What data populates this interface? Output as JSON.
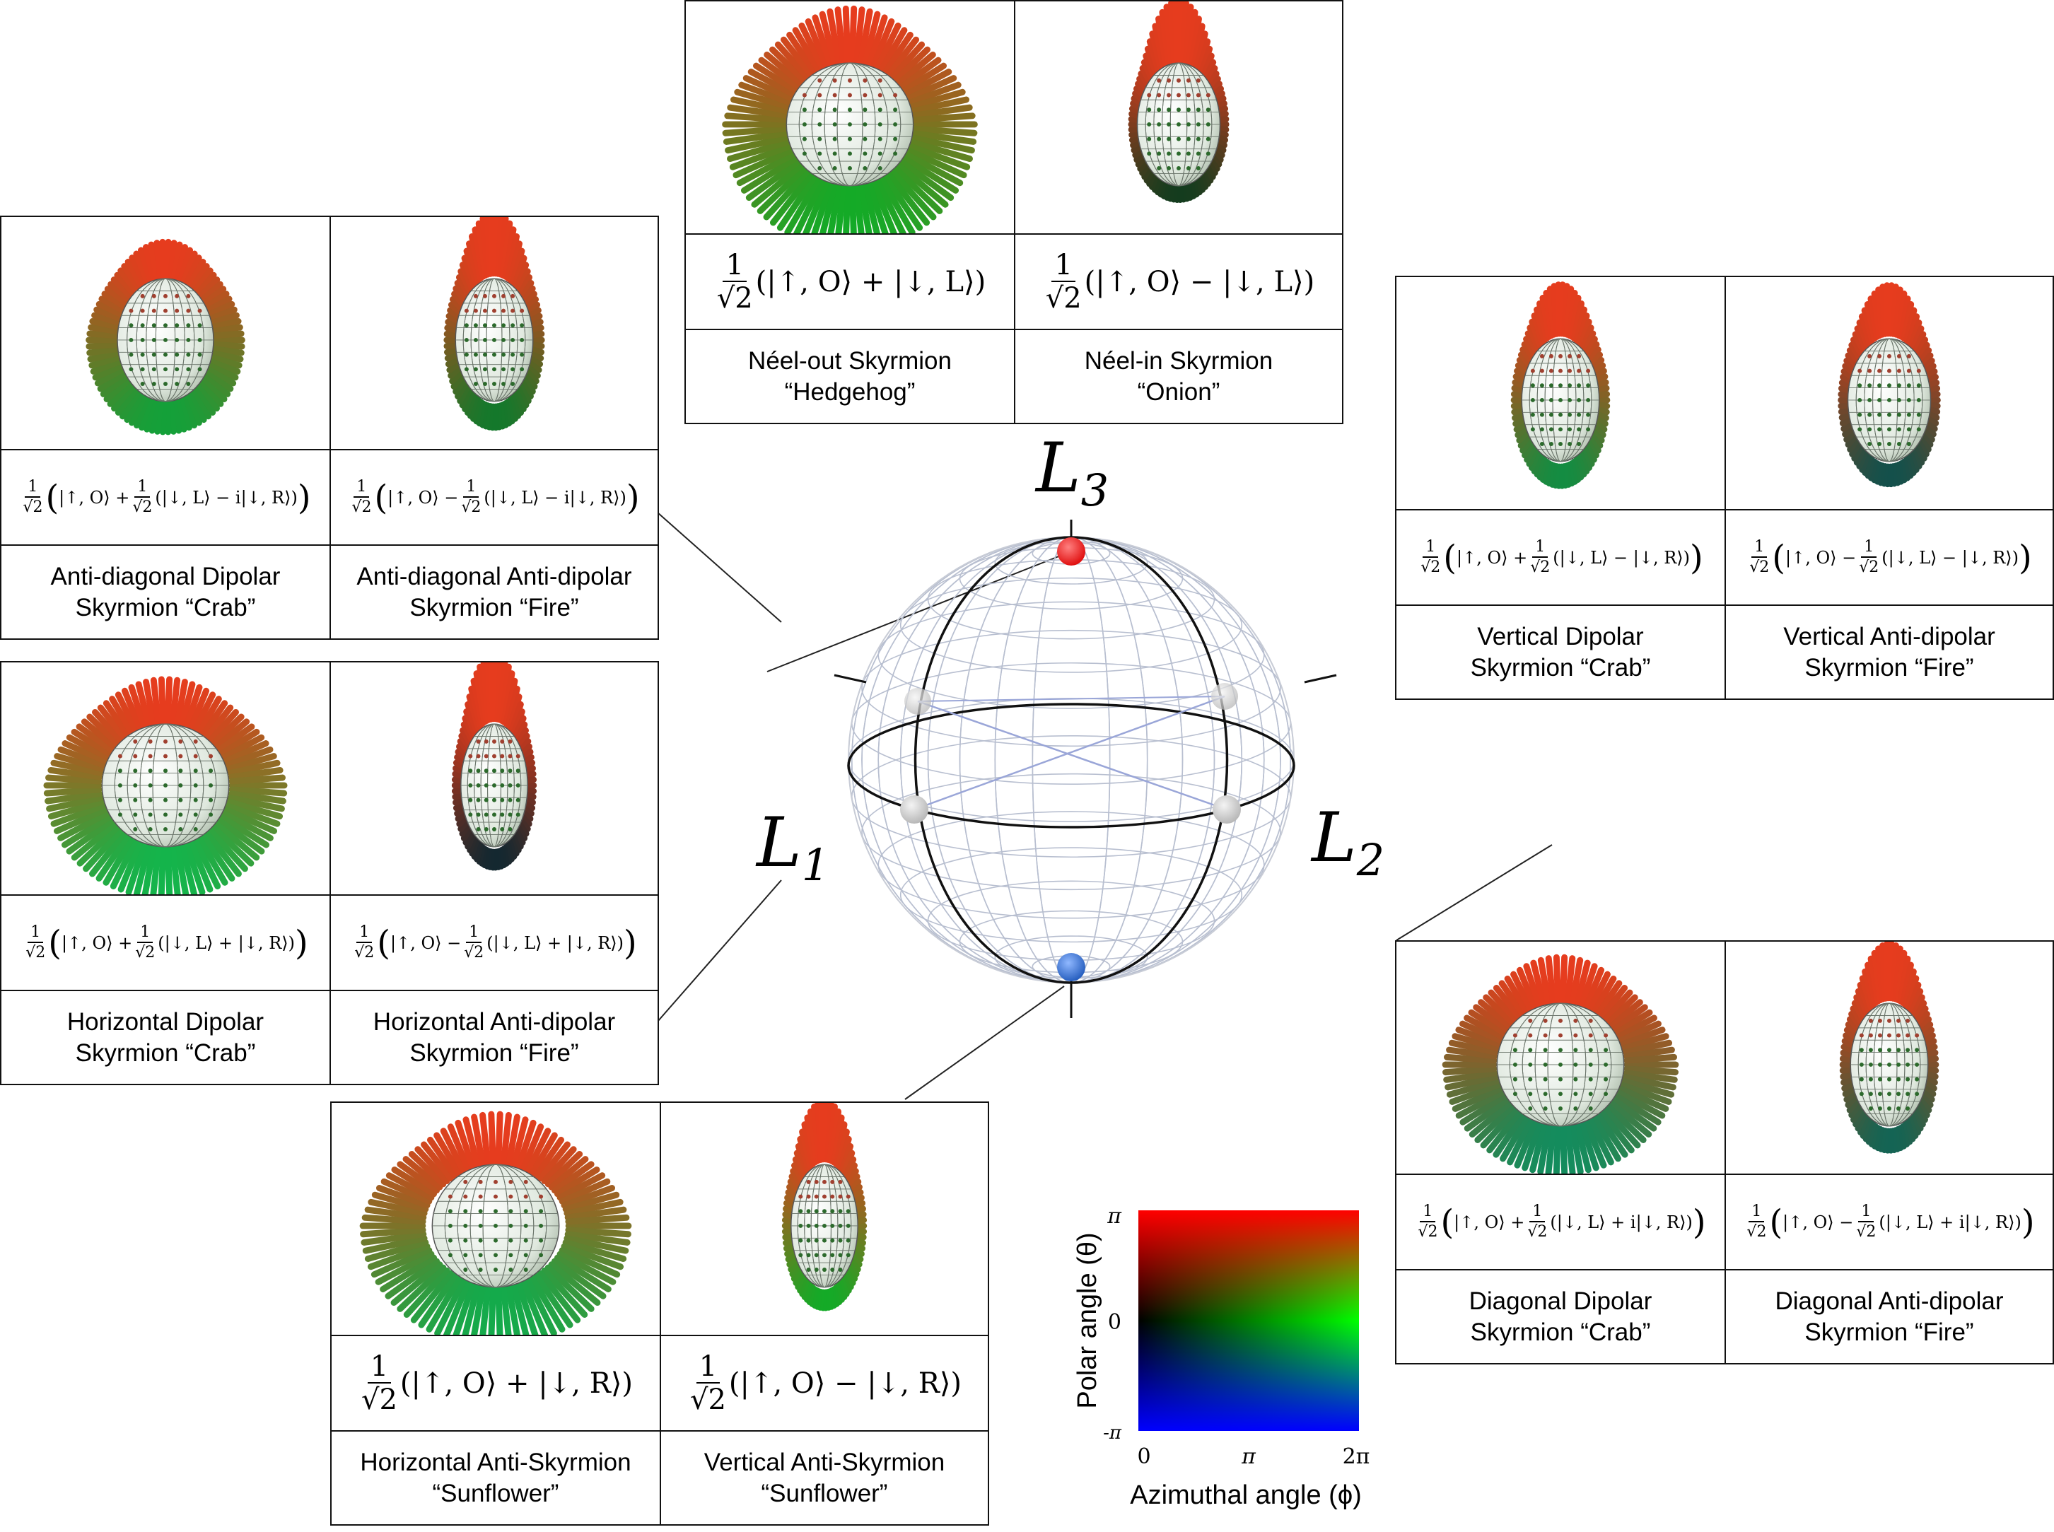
{
  "sphere": {
    "labels": [
      {
        "main": "L",
        "sub": "3",
        "name": "l3-label"
      },
      {
        "main": "L",
        "sub": "1",
        "name": "l1-label"
      },
      {
        "main": "L",
        "sub": "2",
        "name": "l2-label"
      }
    ],
    "colors": {
      "top_point": "#e01010",
      "bottom_point": "#2860c0",
      "equator_points": "#b8b8b8"
    }
  },
  "panels": {
    "top": {
      "left": {
        "coef": "1",
        "root": "√2",
        "expr": "(|↑, O⟩ + |↓, L⟩)",
        "name_line1": "Néel-out Skyrmion",
        "name_line2": "“Hedgehog”"
      },
      "right": {
        "coef": "1",
        "root": "√2",
        "expr": "(|↑, O⟩ − |↓, L⟩)",
        "name_line1": "Néel-in Skyrmion",
        "name_line2": "“Onion”"
      }
    },
    "upper_left": {
      "left": {
        "pre": "|↑, O⟩ +",
        "coef": "1",
        "root": "√2",
        "post": "(|↓, L⟩ − i|↓, R⟩)",
        "name_line1": "Anti-diagonal Dipolar",
        "name_line2": "Skyrmion “Crab”"
      },
      "right": {
        "pre": "|↑, O⟩ −",
        "coef": "1",
        "root": "√2",
        "post": "(|↓, L⟩ − i|↓, R⟩)",
        "name_line1": "Anti-diagonal Anti-dipolar",
        "name_line2": "Skyrmion “Fire”"
      }
    },
    "mid_left": {
      "left": {
        "pre": "|↑, O⟩ +",
        "coef": "1",
        "root": "√2",
        "post": "(|↓, L⟩ + |↓, R⟩)",
        "name_line1": "Horizontal Dipolar",
        "name_line2": "Skyrmion “Crab”"
      },
      "right": {
        "pre": "|↑, O⟩ −",
        "coef": "1",
        "root": "√2",
        "post": "(|↓, L⟩ + |↓, R⟩)",
        "name_line1": "Horizontal Anti-dipolar",
        "name_line2": "Skyrmion “Fire”"
      }
    },
    "upper_right": {
      "left": {
        "pre": "|↑, O⟩ +",
        "coef": "1",
        "root": "√2",
        "post": "(|↓, L⟩ − |↓, R⟩)",
        "name_line1": "Vertical Dipolar",
        "name_line2": "Skyrmion “Crab”"
      },
      "right": {
        "pre": "|↑, O⟩ −",
        "coef": "1",
        "root": "√2",
        "post": "(|↓, L⟩ − |↓, R⟩)",
        "name_line1": "Vertical Anti-dipolar",
        "name_line2": "Skyrmion “Fire”"
      }
    },
    "lower_right": {
      "left": {
        "pre": "|↑, O⟩ +",
        "coef": "1",
        "root": "√2",
        "post": "(|↓, L⟩ + i|↓, R⟩)",
        "name_line1": "Diagonal Dipolar",
        "name_line2": "Skyrmion “Crab”"
      },
      "right": {
        "pre": "|↑, O⟩ −",
        "coef": "1",
        "root": "√2",
        "post": "(|↓, L⟩ + i|↓, R⟩)",
        "name_line1": "Diagonal Anti-dipolar",
        "name_line2": "Skyrmion “Fire”"
      }
    },
    "bottom": {
      "left": {
        "coef": "1",
        "root": "√2",
        "expr": "(|↑, O⟩ + |↓, R⟩)",
        "name_line1": "Horizontal Anti-Skyrmion",
        "name_line2": "“Sunflower”"
      },
      "right": {
        "coef": "1",
        "root": "√2",
        "expr": "(|↑, O⟩ − |↓, R⟩)",
        "name_line1": "Vertical Anti-Skyrmion",
        "name_line2": "“Sunflower”"
      }
    }
  },
  "legend": {
    "ylabel": "Polar angle (θ)",
    "xlabel": "Azimuthal angle (ϕ)",
    "y_ticks": [
      "π",
      "0",
      "-π"
    ],
    "x_ticks": [
      "0",
      "π",
      "2π"
    ],
    "colors": {
      "top": "#ff0000",
      "middle_left": "#000000",
      "middle_right": "#00ff00",
      "bottom": "#0000ff"
    }
  }
}
